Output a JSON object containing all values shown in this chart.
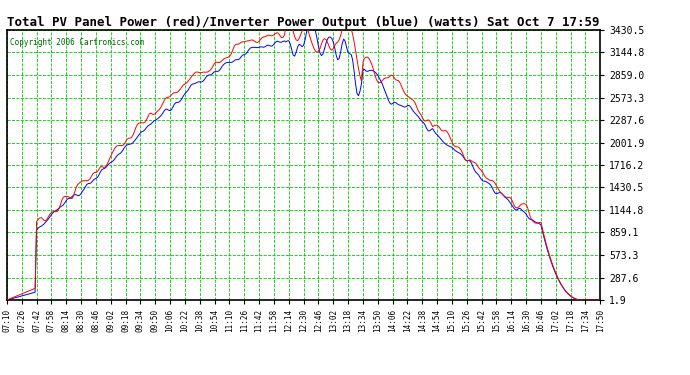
{
  "title": "Total PV Panel Power (red)/Inverter Power Output (blue) (watts) Sat Oct 7 17:59",
  "copyright": "Copyright 2006 Cartronics.com",
  "plot_bg_color": "#ffffff",
  "fig_bg_color": "#ffffff",
  "grid_color": "#00cc00",
  "yticks": [
    1.9,
    287.6,
    573.3,
    859.1,
    1144.8,
    1430.5,
    1716.2,
    2001.9,
    2287.6,
    2573.3,
    2859.0,
    3144.8,
    3430.5
  ],
  "ymin": 1.9,
  "ymax": 3430.5,
  "red_color": "#ff0000",
  "blue_color": "#0000ff",
  "figsize": [
    6.9,
    3.75
  ],
  "dpi": 100,
  "time_labels": [
    "07:10",
    "07:26",
    "07:42",
    "07:58",
    "08:14",
    "08:30",
    "08:46",
    "09:02",
    "09:18",
    "09:34",
    "09:50",
    "10:06",
    "10:22",
    "10:38",
    "10:54",
    "11:10",
    "11:26",
    "11:42",
    "11:58",
    "12:14",
    "12:30",
    "12:46",
    "13:02",
    "13:18",
    "13:34",
    "13:50",
    "14:06",
    "14:22",
    "14:38",
    "14:54",
    "15:10",
    "15:26",
    "15:42",
    "15:58",
    "16:14",
    "16:30",
    "16:46",
    "17:02",
    "17:18",
    "17:34",
    "17:50"
  ]
}
